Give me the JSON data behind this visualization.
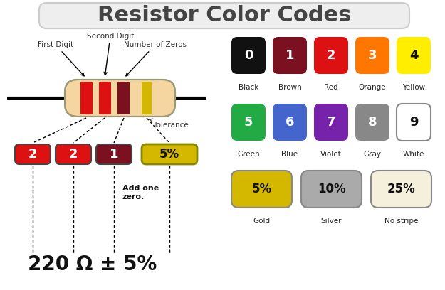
{
  "title": "Resistor Color Codes",
  "title_fontsize": 22,
  "title_bg": "#eeeeee",
  "bg_color": "#ffffff",
  "color_rows": [
    {
      "items": [
        {
          "label": "0",
          "name": "Black",
          "bg": "#111111",
          "fg": "#ffffff"
        },
        {
          "label": "1",
          "name": "Brown",
          "bg": "#7b1020",
          "fg": "#ffffff"
        },
        {
          "label": "2",
          "name": "Red",
          "bg": "#dd1111",
          "fg": "#ffffff"
        },
        {
          "label": "3",
          "name": "Orange",
          "bg": "#ff7700",
          "fg": "#ffffff"
        },
        {
          "label": "4",
          "name": "Yellow",
          "bg": "#ffee00",
          "fg": "#111111"
        }
      ]
    },
    {
      "items": [
        {
          "label": "5",
          "name": "Green",
          "bg": "#22aa44",
          "fg": "#ffffff"
        },
        {
          "label": "6",
          "name": "Blue",
          "bg": "#4466cc",
          "fg": "#ffffff"
        },
        {
          "label": "7",
          "name": "Violet",
          "bg": "#7722aa",
          "fg": "#ffffff"
        },
        {
          "label": "8",
          "name": "Gray",
          "bg": "#888888",
          "fg": "#ffffff"
        },
        {
          "label": "9",
          "name": "White",
          "bg": "#ffffff",
          "fg": "#111111"
        }
      ]
    }
  ],
  "tolerance_row": [
    {
      "label": "5%",
      "name": "Gold",
      "bg": "#d4b800",
      "fg": "#111111"
    },
    {
      "label": "10%",
      "name": "Silver",
      "bg": "#aaaaaa",
      "fg": "#111111"
    },
    {
      "label": "25%",
      "name": "No stripe",
      "bg": "#f5f0dc",
      "fg": "#111111"
    }
  ],
  "result_text": "220 Ω ± 5%",
  "add_one_zero": "Add one\nzero."
}
